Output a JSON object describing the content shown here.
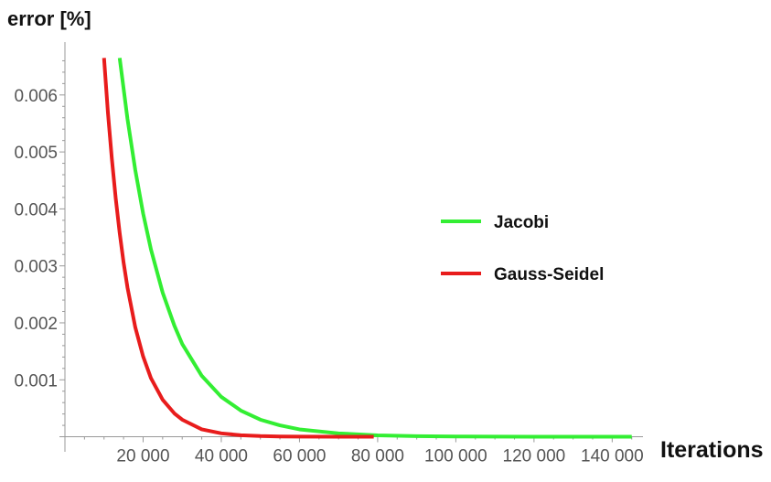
{
  "chart_data": {
    "type": "line",
    "title": "",
    "xlabel": "Iterations",
    "ylabel": "error [%]",
    "xlim": [
      0,
      146000
    ],
    "ylim": [
      -0.0002,
      0.0068
    ],
    "x_ticks": [
      20000,
      40000,
      60000,
      80000,
      100000,
      120000,
      140000
    ],
    "x_tick_labels": [
      "20 000",
      "40 000",
      "60 000",
      "80 000",
      "100 000",
      "120 000",
      "140 000"
    ],
    "y_ticks": [
      0.001,
      0.002,
      0.003,
      0.004,
      0.005,
      0.006
    ],
    "y_tick_labels": [
      "0.001",
      "0.002",
      "0.003",
      "0.004",
      "0.005",
      "0.006"
    ],
    "grid": false,
    "legend_position": "right",
    "series": [
      {
        "name": "Jacobi",
        "color": "#33ee33",
        "x": [
          14000,
          16000,
          18000,
          20000,
          22000,
          25000,
          28000,
          30000,
          35000,
          40000,
          45000,
          50000,
          55000,
          60000,
          70000,
          80000,
          90000,
          100000,
          110000,
          120000,
          130000,
          145000
        ],
        "y": [
          0.00665,
          0.00558,
          0.00468,
          0.00392,
          0.00329,
          0.00253,
          0.00195,
          0.00163,
          0.00107,
          0.0007,
          0.00046,
          0.0003,
          0.0002,
          0.00013,
          6e-05,
          2.4e-05,
          1.1e-05,
          5e-06,
          2e-06,
          1e-06,
          4e-07,
          1e-07
        ]
      },
      {
        "name": "Gauss-Seidel",
        "color": "#e81c1c",
        "x": [
          10000,
          11000,
          12000,
          13000,
          14000,
          15000,
          16000,
          18000,
          20000,
          22000,
          25000,
          28000,
          30000,
          35000,
          40000,
          45000,
          50000,
          55000,
          60000,
          70000,
          79000
        ],
        "y": [
          0.00665,
          0.00569,
          0.00488,
          0.00418,
          0.00358,
          0.00306,
          0.00262,
          0.00192,
          0.00141,
          0.00103,
          0.00065,
          0.00041,
          0.0003,
          0.00013,
          6e-05,
          2.7e-05,
          1.2e-05,
          5e-06,
          2e-06,
          5e-07,
          1e-07
        ]
      }
    ]
  }
}
